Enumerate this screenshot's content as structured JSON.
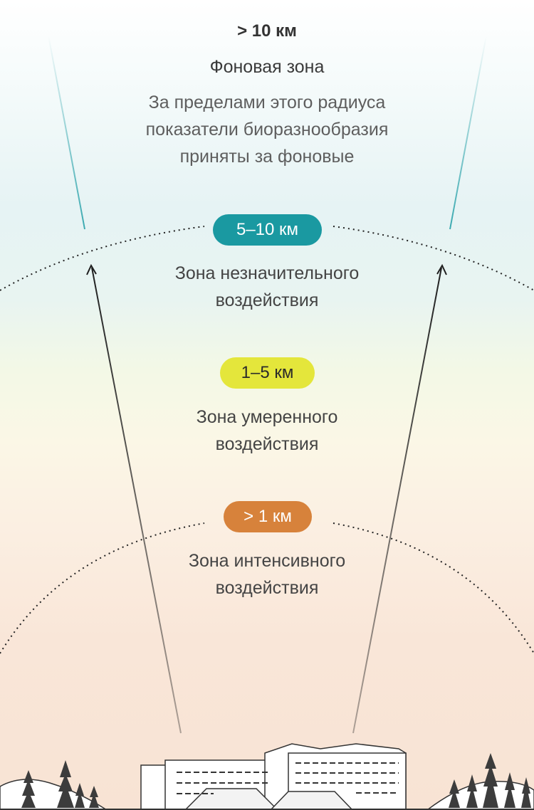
{
  "header": {
    "distance": "> 10 км",
    "zone_title": "Фоновая зона",
    "description_lines": [
      "За пределами этого радиуса",
      "показатели биоразнообразия",
      "приняты за фоновые"
    ]
  },
  "zones": [
    {
      "badge": "5–10 км",
      "badge_color": "#1a99a1",
      "label_lines": [
        "Зона незначительного",
        "воздействия"
      ]
    },
    {
      "badge": "1–5 км",
      "badge_color": "#e4e63b",
      "label_lines": [
        "Зона умеренного",
        "воздействия"
      ]
    },
    {
      "badge": "> 1 км",
      "badge_color": "#d7823b",
      "label_lines": [
        "Зона интенсивного",
        "воздействия"
      ]
    }
  ],
  "colors": {
    "teal": "#1a99a1",
    "yellow": "#e4e63b",
    "orange": "#d7823b"
  },
  "illustration": {
    "icons": [
      "factory-building-icon",
      "spruce-tree-icon",
      "hill-icon",
      "arrow-up-icon"
    ]
  }
}
